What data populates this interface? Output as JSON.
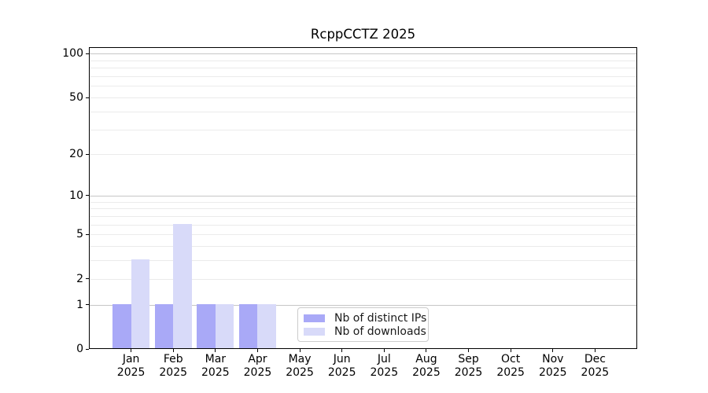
{
  "chart_data": {
    "type": "bar",
    "title": "RcppCCTZ 2025",
    "x_labels": [
      {
        "month": "Jan",
        "year": "2025"
      },
      {
        "month": "Feb",
        "year": "2025"
      },
      {
        "month": "Mar",
        "year": "2025"
      },
      {
        "month": "Apr",
        "year": "2025"
      },
      {
        "month": "May",
        "year": "2025"
      },
      {
        "month": "Jun",
        "year": "2025"
      },
      {
        "month": "Jul",
        "year": "2025"
      },
      {
        "month": "Aug",
        "year": "2025"
      },
      {
        "month": "Sep",
        "year": "2025"
      },
      {
        "month": "Oct",
        "year": "2025"
      },
      {
        "month": "Nov",
        "year": "2025"
      },
      {
        "month": "Dec",
        "year": "2025"
      }
    ],
    "series": [
      {
        "name": "Nb of distinct IPs",
        "color": "#a9a9f7",
        "values": [
          1,
          1,
          1,
          1,
          0,
          0,
          0,
          0,
          0,
          0,
          0,
          0
        ]
      },
      {
        "name": "Nb of downloads",
        "color": "#d8daf9",
        "values": [
          3,
          6,
          1,
          1,
          0,
          0,
          0,
          0,
          0,
          0,
          0,
          0
        ]
      }
    ],
    "yscale": "log1p",
    "ylim": [
      0,
      111
    ],
    "yticks": [
      0,
      1,
      2,
      5,
      10,
      20,
      50,
      100
    ],
    "major_gridlines": [
      1,
      10,
      100
    ],
    "minor_gridlines": [
      2,
      3,
      4,
      5,
      6,
      7,
      8,
      9,
      20,
      30,
      40,
      50,
      60,
      70,
      80,
      90
    ],
    "grid": true,
    "legend_position": "lower center",
    "colors": {
      "major_grid": "#c6c6c6",
      "minor_grid": "#ebebeb",
      "spine": "#000000",
      "text": "#000000"
    }
  }
}
